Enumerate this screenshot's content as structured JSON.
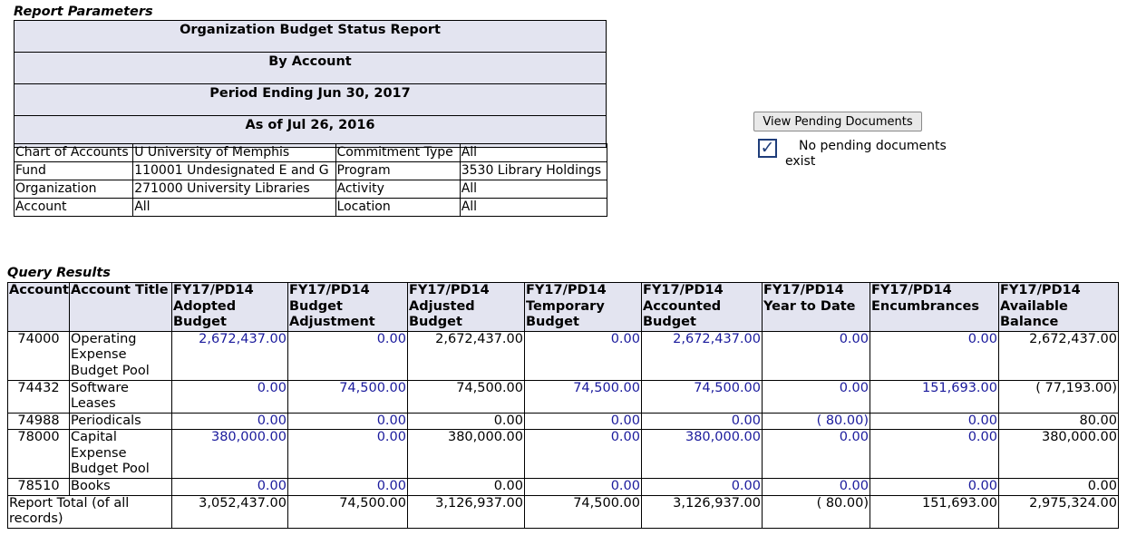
{
  "report_parameters": {
    "caption": "Report Parameters",
    "title": "Organization Budget Status Report",
    "subtitle": "By Account",
    "period": "Period Ending Jun 30, 2017",
    "as_of": "As of Jul 26, 2016",
    "rows": [
      {
        "label1": "Chart of Accounts",
        "value1": "U University of Memphis",
        "label2": "Commitment Type",
        "value2": "All"
      },
      {
        "label1": "Fund",
        "value1": "110001 Undesignated E and G",
        "label2": "Program",
        "value2": "3530 Library Holdings"
      },
      {
        "label1": "Organization",
        "value1": "271000 University Libraries",
        "label2": "Activity",
        "value2": "All"
      },
      {
        "label1": "Account",
        "value1": "All",
        "label2": "Location",
        "value2": "All"
      }
    ]
  },
  "pending": {
    "button_label": "View Pending Documents",
    "check_glyph": "✓",
    "text_line1": "No pending documents",
    "text_line2": "exist"
  },
  "query_results": {
    "caption": "Query Results",
    "headers": [
      [
        "Account"
      ],
      [
        "Account Title"
      ],
      [
        "FY17/PD14",
        "Adopted",
        "Budget"
      ],
      [
        "FY17/PD14",
        "Budget",
        "Adjustment"
      ],
      [
        "FY17/PD14",
        "Adjusted",
        "Budget"
      ],
      [
        "FY17/PD14",
        "Temporary",
        "Budget"
      ],
      [
        "FY17/PD14",
        "Accounted",
        "Budget"
      ],
      [
        "FY17/PD14",
        "Year to Date"
      ],
      [
        "FY17/PD14",
        "Encumbrances"
      ],
      [
        "FY17/PD14",
        "Available",
        "Balance"
      ]
    ],
    "rows": [
      {
        "account": "74000",
        "title": [
          "Operating",
          "Expense",
          "Budget Pool"
        ],
        "values": [
          "2,672,437.00",
          "0.00",
          "2,672,437.00",
          "0.00",
          "2,672,437.00",
          "0.00",
          "0.00",
          "2,672,437.00"
        ]
      },
      {
        "account": "74432",
        "title": [
          "Software",
          "Leases"
        ],
        "values": [
          "0.00",
          "74,500.00",
          "74,500.00",
          "74,500.00",
          "74,500.00",
          "0.00",
          "151,693.00",
          "( 77,193.00)"
        ]
      },
      {
        "account": "74988",
        "title": [
          "Periodicals"
        ],
        "values": [
          "0.00",
          "0.00",
          "0.00",
          "0.00",
          "0.00",
          "( 80.00)",
          "0.00",
          "80.00"
        ]
      },
      {
        "account": "78000",
        "title": [
          "Capital",
          "Expense",
          "Budget Pool"
        ],
        "values": [
          "380,000.00",
          "0.00",
          "380,000.00",
          "0.00",
          "380,000.00",
          "0.00",
          "0.00",
          "380,000.00"
        ]
      },
      {
        "account": "78510",
        "title": [
          "Books"
        ],
        "values": [
          "0.00",
          "0.00",
          "0.00",
          "0.00",
          "0.00",
          "0.00",
          "0.00",
          "0.00"
        ]
      }
    ],
    "total": {
      "label": [
        "Report Total (of all",
        "records)"
      ],
      "values": [
        "3,052,437.00",
        "74,500.00",
        "3,126,937.00",
        "74,500.00",
        "3,126,937.00",
        "( 80.00)",
        "151,693.00",
        "2,975,324.00"
      ]
    },
    "colors": {
      "header_bg": "#e3e4f0",
      "link": "#1a1a9c"
    }
  }
}
